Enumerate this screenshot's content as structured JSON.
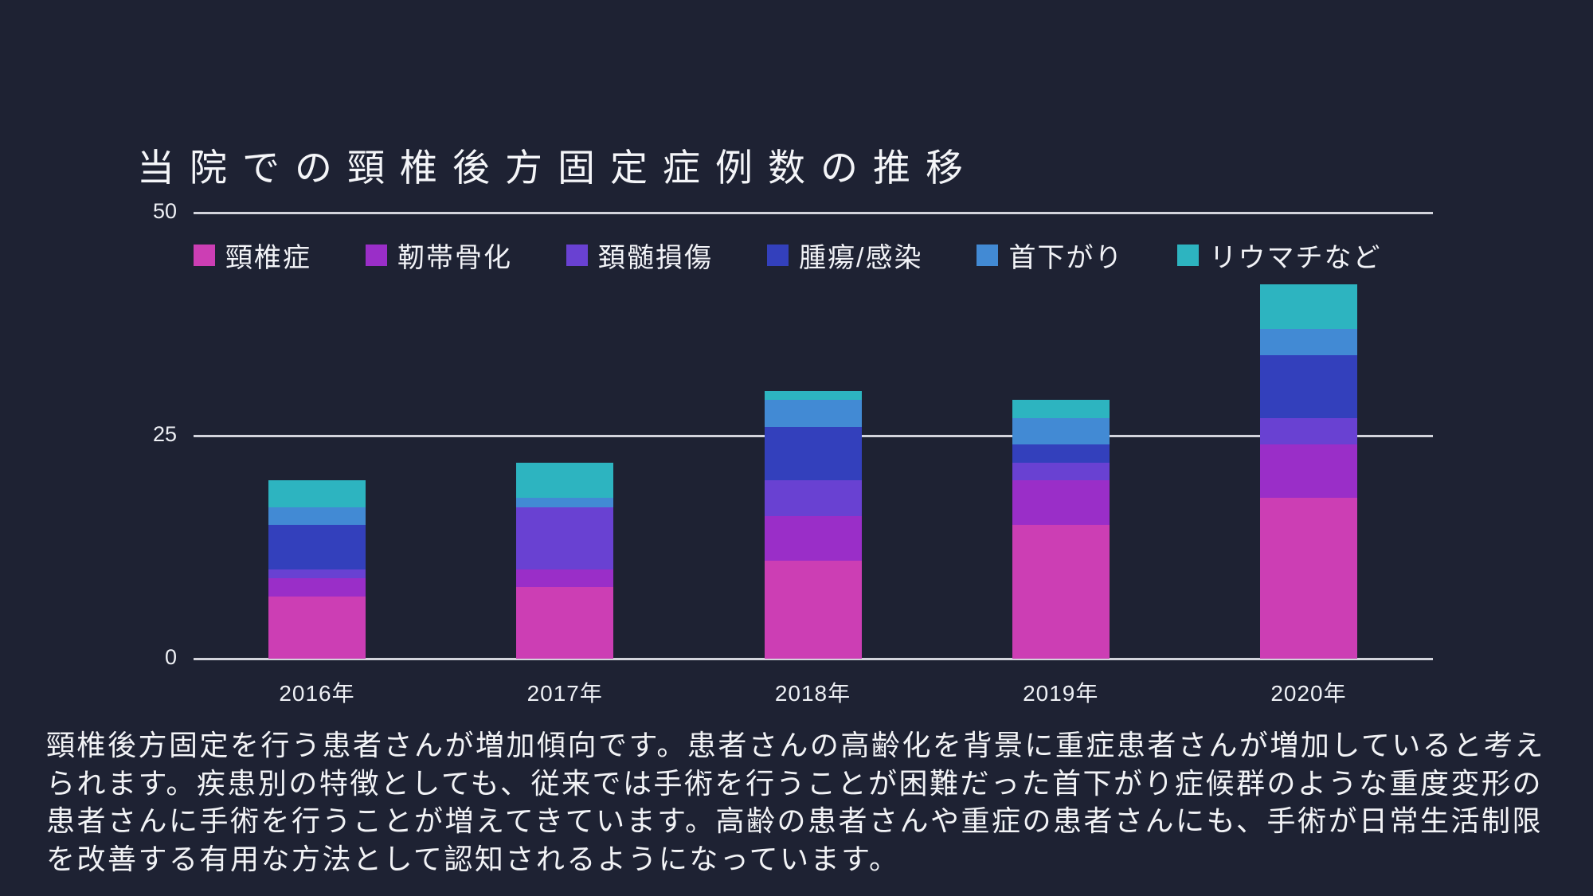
{
  "slide": {
    "background_color": "#1e2233",
    "text_color": "#f2f3f6"
  },
  "title": "当院での頸椎後方固定症例数の推移",
  "chart_data": {
    "type": "bar",
    "stacked": true,
    "title": "当院での頸椎後方固定症例数の推移",
    "categories": [
      "2016年",
      "2017年",
      "2018年",
      "2019年",
      "2020年"
    ],
    "series": [
      {
        "name": "頸椎症",
        "color": "#cc3eb4",
        "values": [
          7,
          8,
          11,
          15,
          18
        ]
      },
      {
        "name": "靭帯骨化",
        "color": "#9a2ec8",
        "values": [
          2,
          2,
          5,
          5,
          6
        ]
      },
      {
        "name": "頚髄損傷",
        "color": "#6941d2",
        "values": [
          1,
          7,
          4,
          2,
          3
        ]
      },
      {
        "name": "腫瘍/感染",
        "color": "#3340bc",
        "values": [
          5,
          0,
          6,
          2,
          7
        ]
      },
      {
        "name": "首下がり",
        "color": "#428ad4",
        "values": [
          2,
          1,
          3,
          3,
          3
        ]
      },
      {
        "name": "リウマチなど",
        "color": "#2db4c0",
        "values": [
          3,
          4,
          1,
          2,
          5
        ]
      }
    ],
    "totals": [
      20,
      22,
      30,
      29,
      42
    ],
    "ylim": [
      0,
      50
    ],
    "yticks": [
      "0",
      "25",
      "50"
    ],
    "grid": true,
    "gridline_color": "#e3e4ea",
    "legend_position": "top-left"
  },
  "description": {
    "text": "頸椎後方固定を行う患者さんが増加傾向です。患者さんの高齢化を背景に重症患者さんが増加していると考え\nられます。疾患別の特徴としても、従来では手術を行うことが困難だった首下がり症候群のような重度変形の\n患者さんに手術を行うことが増えてきています。高齢の患者さんや重症の患者さんにも、手術が日常生活制限\nを改善する有用な方法として認知されるようになっています。"
  }
}
